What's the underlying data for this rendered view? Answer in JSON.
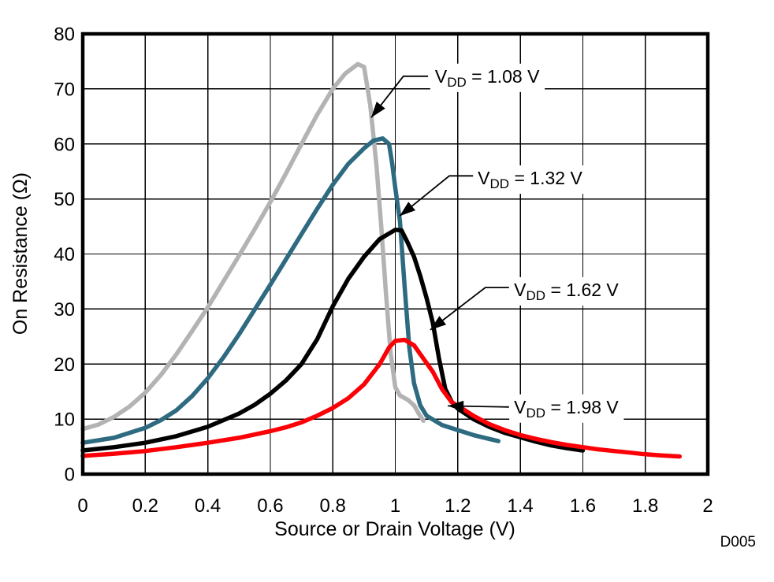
{
  "figure": {
    "id_label": "D005",
    "watermark_color": "#b2b2b2",
    "background": "#ffffff",
    "grid_color": "#000000",
    "border_color": "#000000"
  },
  "chart_data": {
    "type": "line",
    "title": "",
    "xlabel": "Source or Drain Voltage (V)",
    "ylabel": "On Resistance (Ω)",
    "xlim": [
      0,
      2
    ],
    "ylim": [
      0,
      80
    ],
    "grid": true,
    "legend_position": "inline-annotations",
    "xticks": {
      "values": [
        0,
        0.2,
        0.4,
        0.6,
        0.8,
        1,
        1.2,
        1.4,
        1.6,
        1.8,
        2
      ],
      "labels": [
        "0",
        "0.2",
        "0.4",
        "0.6",
        "0.8",
        "1",
        "1.2",
        "1.4",
        "1.6",
        "1.8",
        "2"
      ]
    },
    "yticks": {
      "values": [
        0,
        10,
        20,
        30,
        40,
        50,
        60,
        70,
        80
      ],
      "labels": [
        "0",
        "10",
        "20",
        "30",
        "40",
        "50",
        "60",
        "70",
        "80"
      ]
    },
    "series": [
      {
        "id": "vdd-1.08",
        "name": "VDD = 1.08 V",
        "color": "#b3b3b3",
        "width": 5.5,
        "points": [
          [
            0,
            8.2
          ],
          [
            0.05,
            9.0
          ],
          [
            0.1,
            10.4
          ],
          [
            0.15,
            12.3
          ],
          [
            0.2,
            14.8
          ],
          [
            0.25,
            18.0
          ],
          [
            0.3,
            21.8
          ],
          [
            0.35,
            26.0
          ],
          [
            0.4,
            30.3
          ],
          [
            0.45,
            35.0
          ],
          [
            0.5,
            39.7
          ],
          [
            0.55,
            44.5
          ],
          [
            0.6,
            49.4
          ],
          [
            0.65,
            54.6
          ],
          [
            0.7,
            60.0
          ],
          [
            0.75,
            65.3
          ],
          [
            0.8,
            70.0
          ],
          [
            0.84,
            72.8
          ],
          [
            0.88,
            74.5
          ],
          [
            0.9,
            74.0
          ],
          [
            0.92,
            67.0
          ],
          [
            0.94,
            56.0
          ],
          [
            0.955,
            45.0
          ],
          [
            0.97,
            33.0
          ],
          [
            0.985,
            22.0
          ],
          [
            1.0,
            15.8
          ],
          [
            1.015,
            14.3
          ],
          [
            1.04,
            13.5
          ],
          [
            1.06,
            12.5
          ],
          [
            1.075,
            11.0
          ],
          [
            1.09,
            9.7
          ]
        ]
      },
      {
        "id": "vdd-1.32",
        "name": "VDD = 1.32 V",
        "color": "#2e6a80",
        "width": 5.5,
        "points": [
          [
            0,
            5.7
          ],
          [
            0.1,
            6.6
          ],
          [
            0.2,
            8.4
          ],
          [
            0.25,
            9.8
          ],
          [
            0.3,
            11.6
          ],
          [
            0.35,
            14.2
          ],
          [
            0.4,
            17.4
          ],
          [
            0.45,
            21.2
          ],
          [
            0.5,
            25.4
          ],
          [
            0.55,
            29.9
          ],
          [
            0.6,
            34.4
          ],
          [
            0.65,
            39.0
          ],
          [
            0.7,
            43.6
          ],
          [
            0.75,
            48.2
          ],
          [
            0.8,
            52.6
          ],
          [
            0.85,
            56.4
          ],
          [
            0.9,
            59.2
          ],
          [
            0.93,
            60.6
          ],
          [
            0.96,
            61.0
          ],
          [
            0.98,
            60.0
          ],
          [
            0.99,
            56.5
          ],
          [
            1.0,
            52.0
          ],
          [
            1.015,
            46.0
          ],
          [
            1.03,
            34.0
          ],
          [
            1.045,
            23.0
          ],
          [
            1.06,
            16.5
          ],
          [
            1.08,
            12.5
          ],
          [
            1.1,
            10.6
          ],
          [
            1.15,
            8.9
          ],
          [
            1.2,
            8.0
          ],
          [
            1.25,
            7.1
          ],
          [
            1.3,
            6.4
          ],
          [
            1.33,
            6.0
          ]
        ]
      },
      {
        "id": "vdd-1.62",
        "name": "VDD = 1.62 V",
        "color": "#000000",
        "width": 5.5,
        "points": [
          [
            0,
            4.3
          ],
          [
            0.1,
            4.9
          ],
          [
            0.2,
            5.7
          ],
          [
            0.3,
            6.9
          ],
          [
            0.4,
            8.6
          ],
          [
            0.5,
            11.0
          ],
          [
            0.55,
            12.6
          ],
          [
            0.6,
            14.6
          ],
          [
            0.65,
            17.0
          ],
          [
            0.7,
            20.0
          ],
          [
            0.75,
            24.5
          ],
          [
            0.8,
            30.5
          ],
          [
            0.85,
            35.5
          ],
          [
            0.9,
            39.5
          ],
          [
            0.95,
            42.7
          ],
          [
            1.0,
            44.4
          ],
          [
            1.02,
            44.3
          ],
          [
            1.04,
            42.0
          ],
          [
            1.06,
            39.5
          ],
          [
            1.08,
            36.0
          ],
          [
            1.1,
            32.0
          ],
          [
            1.12,
            27.5
          ],
          [
            1.14,
            21.0
          ],
          [
            1.16,
            15.5
          ],
          [
            1.18,
            13.2
          ],
          [
            1.2,
            11.9
          ],
          [
            1.25,
            10.0
          ],
          [
            1.3,
            8.6
          ],
          [
            1.35,
            7.5
          ],
          [
            1.4,
            6.7
          ],
          [
            1.45,
            5.9
          ],
          [
            1.5,
            5.2
          ],
          [
            1.55,
            4.7
          ],
          [
            1.6,
            4.3
          ]
        ]
      },
      {
        "id": "vdd-1.98",
        "name": "VDD = 1.98 V",
        "color": "#fb0006",
        "width": 5.5,
        "points": [
          [
            0,
            3.3
          ],
          [
            0.1,
            3.7
          ],
          [
            0.2,
            4.2
          ],
          [
            0.3,
            4.9
          ],
          [
            0.4,
            5.7
          ],
          [
            0.5,
            6.6
          ],
          [
            0.6,
            7.8
          ],
          [
            0.65,
            8.5
          ],
          [
            0.7,
            9.4
          ],
          [
            0.75,
            10.6
          ],
          [
            0.8,
            12.0
          ],
          [
            0.85,
            13.8
          ],
          [
            0.9,
            16.3
          ],
          [
            0.95,
            20.0
          ],
          [
            0.98,
            23.0
          ],
          [
            1.0,
            24.2
          ],
          [
            1.03,
            24.4
          ],
          [
            1.06,
            23.4
          ],
          [
            1.09,
            21.0
          ],
          [
            1.12,
            18.6
          ],
          [
            1.15,
            15.4
          ],
          [
            1.18,
            13.1
          ],
          [
            1.22,
            11.7
          ],
          [
            1.25,
            10.6
          ],
          [
            1.3,
            9.1
          ],
          [
            1.35,
            8.0
          ],
          [
            1.4,
            7.1
          ],
          [
            1.45,
            6.4
          ],
          [
            1.5,
            5.8
          ],
          [
            1.55,
            5.3
          ],
          [
            1.6,
            4.9
          ],
          [
            1.65,
            4.5
          ],
          [
            1.7,
            4.2
          ],
          [
            1.75,
            3.9
          ],
          [
            1.8,
            3.6
          ],
          [
            1.85,
            3.4
          ],
          [
            1.91,
            3.2
          ]
        ]
      }
    ],
    "annotations": [
      {
        "id": "ann-vdd-1.08",
        "pre": "V",
        "sub": "DD",
        "suffix": " = 1.08 V",
        "text_at": [
          1.127,
          72.3
        ],
        "leader": [
          [
            1.105,
            72.3
          ],
          [
            1.026,
            72.3
          ],
          [
            0.923,
            64.8
          ]
        ]
      },
      {
        "id": "ann-vdd-1.32",
        "pre": "V",
        "sub": "DD",
        "suffix": " = 1.32 V",
        "text_at": [
          1.264,
          53.8
        ],
        "leader": [
          [
            1.251,
            54.2
          ],
          [
            1.173,
            54.2
          ],
          [
            1.014,
            46.9
          ]
        ]
      },
      {
        "id": "ann-vdd-1.62",
        "pre": "V",
        "sub": "DD",
        "suffix": " = 1.62 V",
        "text_at": [
          1.38,
          33.5
        ],
        "leader": [
          [
            1.364,
            33.9
          ],
          [
            1.288,
            33.9
          ],
          [
            1.112,
            26.2
          ]
        ]
      },
      {
        "id": "ann-vdd-1.98",
        "pre": "V",
        "sub": "DD",
        "suffix": " = 1.98 V",
        "text_at": [
          1.38,
          12.2
        ],
        "leader": [
          [
            1.364,
            12.2
          ],
          [
            1.168,
            12.4
          ]
        ]
      }
    ]
  }
}
